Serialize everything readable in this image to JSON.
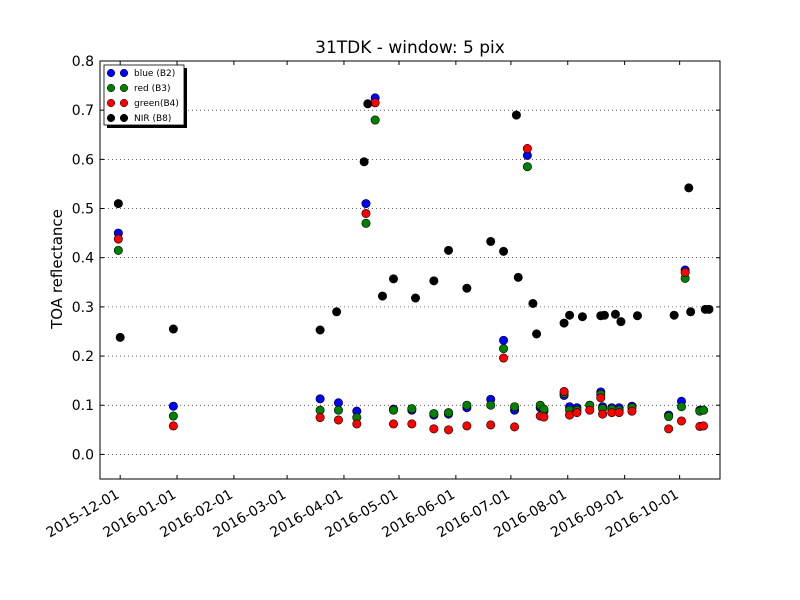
{
  "chart_data": {
    "type": "scatter",
    "title": "31TDK - window: 5 pix",
    "xlabel": "",
    "ylabel": "TOA reflectance",
    "xlim": [
      "2015-11-20",
      "2016-10-23"
    ],
    "ylim": [
      -0.05,
      0.8
    ],
    "y_ticks": [
      0.0,
      0.1,
      0.2,
      0.3,
      0.4,
      0.5,
      0.6,
      0.7,
      0.8
    ],
    "y_tick_labels": [
      "0.0",
      "0.1",
      "0.2",
      "0.3",
      "0.4",
      "0.5",
      "0.6",
      "0.7",
      "0.8"
    ],
    "x_ticks": [
      "2015-12-01",
      "2016-01-01",
      "2016-02-01",
      "2016-03-01",
      "2016-04-01",
      "2016-05-01",
      "2016-06-01",
      "2016-07-01",
      "2016-08-01",
      "2016-09-01",
      "2016-10-01"
    ],
    "grid": "horizontal dotted",
    "legend_position": "top-left",
    "series": [
      {
        "name": "blue (B2)",
        "color": "#0000ff",
        "x": [
          "2015-11-30",
          "2015-12-30",
          "2016-03-19",
          "2016-03-29",
          "2016-04-08",
          "2016-04-13",
          "2016-04-18",
          "2016-04-28",
          "2016-05-08",
          "2016-05-20",
          "2016-05-28",
          "2016-06-07",
          "2016-06-20",
          "2016-06-27",
          "2016-07-03",
          "2016-07-10",
          "2016-07-17",
          "2016-07-19",
          "2016-07-30",
          "2016-08-02",
          "2016-08-06",
          "2016-08-13",
          "2016-08-19",
          "2016-08-20",
          "2016-08-25",
          "2016-08-29",
          "2016-09-05",
          "2016-09-25",
          "2016-10-02",
          "2016-10-04",
          "2016-10-12",
          "2016-10-14"
        ],
        "y": [
          0.45,
          0.098,
          0.113,
          0.105,
          0.088,
          0.51,
          0.725,
          0.092,
          0.09,
          0.08,
          0.082,
          0.095,
          0.112,
          0.232,
          0.09,
          0.608,
          0.095,
          0.088,
          0.12,
          0.097,
          0.095,
          0.1,
          0.127,
          0.097,
          0.095,
          0.095,
          0.098,
          0.08,
          0.108,
          0.375,
          0.09,
          0.09
        ]
      },
      {
        "name": "red  (B3)",
        "color": "#008000",
        "x": [
          "2015-11-30",
          "2015-12-30",
          "2016-03-19",
          "2016-03-29",
          "2016-04-08",
          "2016-04-13",
          "2016-04-18",
          "2016-04-28",
          "2016-05-08",
          "2016-05-20",
          "2016-05-28",
          "2016-06-07",
          "2016-06-20",
          "2016-06-27",
          "2016-07-03",
          "2016-07-10",
          "2016-07-17",
          "2016-07-19",
          "2016-07-30",
          "2016-08-02",
          "2016-08-06",
          "2016-08-13",
          "2016-08-19",
          "2016-08-20",
          "2016-08-25",
          "2016-08-29",
          "2016-09-05",
          "2016-09-25",
          "2016-10-02",
          "2016-10-04",
          "2016-10-12",
          "2016-10-14"
        ],
        "y": [
          0.415,
          0.078,
          0.09,
          0.09,
          0.075,
          0.47,
          0.68,
          0.09,
          0.093,
          0.083,
          0.085,
          0.1,
          0.1,
          0.215,
          0.097,
          0.585,
          0.1,
          0.092,
          0.124,
          0.09,
          0.09,
          0.1,
          0.122,
          0.093,
          0.092,
          0.09,
          0.095,
          0.077,
          0.097,
          0.358,
          0.088,
          0.09
        ]
      },
      {
        "name": "green(B4)",
        "color": "#ff0000",
        "x": [
          "2015-11-30",
          "2015-12-30",
          "2016-03-19",
          "2016-03-29",
          "2016-04-08",
          "2016-04-13",
          "2016-04-18",
          "2016-04-28",
          "2016-05-08",
          "2016-05-20",
          "2016-05-28",
          "2016-06-07",
          "2016-06-20",
          "2016-06-27",
          "2016-07-03",
          "2016-07-10",
          "2016-07-17",
          "2016-07-19",
          "2016-07-30",
          "2016-08-02",
          "2016-08-06",
          "2016-08-13",
          "2016-08-19",
          "2016-08-20",
          "2016-08-25",
          "2016-08-29",
          "2016-09-05",
          "2016-09-25",
          "2016-10-02",
          "2016-10-04",
          "2016-10-12",
          "2016-10-14"
        ],
        "y": [
          0.438,
          0.058,
          0.075,
          0.07,
          0.062,
          0.49,
          0.715,
          0.062,
          0.062,
          0.052,
          0.05,
          0.058,
          0.06,
          0.196,
          0.056,
          0.622,
          0.078,
          0.076,
          0.128,
          0.08,
          0.085,
          0.09,
          0.115,
          0.082,
          0.085,
          0.085,
          0.088,
          0.052,
          0.068,
          0.37,
          0.057,
          0.058
        ]
      },
      {
        "name": "NIR  (B8)",
        "color": "#000000",
        "x": [
          "2015-11-30",
          "2015-12-01",
          "2015-12-30",
          "2016-03-19",
          "2016-03-28",
          "2016-04-12",
          "2016-04-14",
          "2016-04-22",
          "2016-04-28",
          "2016-05-10",
          "2016-05-20",
          "2016-05-28",
          "2016-06-07",
          "2016-06-20",
          "2016-06-27",
          "2016-07-04",
          "2016-07-05",
          "2016-07-13",
          "2016-07-15",
          "2016-07-30",
          "2016-08-02",
          "2016-08-09",
          "2016-08-19",
          "2016-08-21",
          "2016-08-27",
          "2016-08-30",
          "2016-09-08",
          "2016-09-28",
          "2016-10-06",
          "2016-10-07",
          "2016-10-15",
          "2016-10-17"
        ],
        "y": [
          0.51,
          0.238,
          0.255,
          0.253,
          0.29,
          0.595,
          0.713,
          0.322,
          0.357,
          0.318,
          0.353,
          0.415,
          0.338,
          0.433,
          0.413,
          0.69,
          0.36,
          0.307,
          0.245,
          0.267,
          0.283,
          0.28,
          0.282,
          0.283,
          0.285,
          0.27,
          0.282,
          0.283,
          0.542,
          0.29,
          0.295,
          0.295
        ]
      }
    ]
  }
}
